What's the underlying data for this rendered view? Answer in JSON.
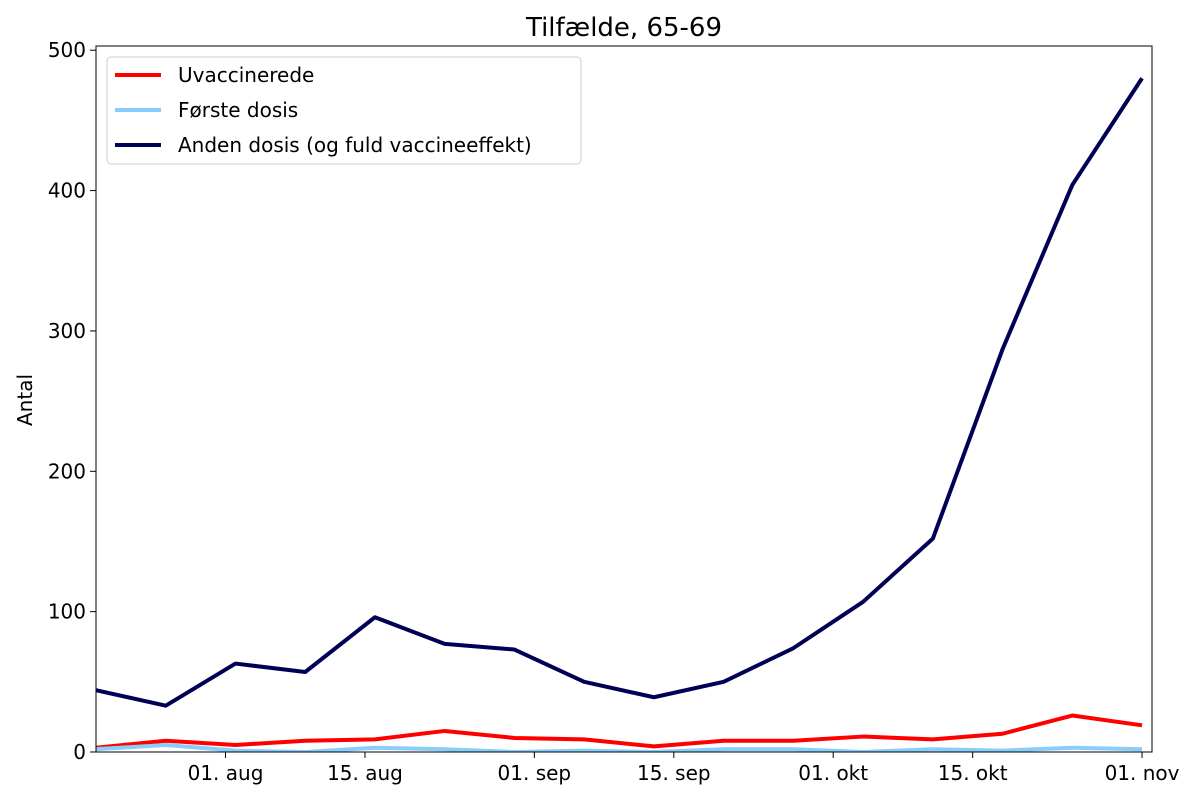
{
  "chart_data": {
    "type": "line",
    "title": "Tilfælde, 65-69",
    "xlabel": "",
    "ylabel": "Antal",
    "ylim": [
      0,
      503
    ],
    "xlim": [
      "2021-07-19",
      "2021-11-02"
    ],
    "yticks": [
      0,
      100,
      200,
      300,
      400,
      500
    ],
    "xticks": [
      {
        "date": "2021-08-01",
        "label": "01. aug"
      },
      {
        "date": "2021-08-15",
        "label": "15. aug"
      },
      {
        "date": "2021-09-01",
        "label": "01. sep"
      },
      {
        "date": "2021-09-15",
        "label": "15. sep"
      },
      {
        "date": "2021-10-01",
        "label": "01. okt"
      },
      {
        "date": "2021-10-15",
        "label": "15. okt"
      },
      {
        "date": "2021-11-01",
        "label": "01. nov"
      }
    ],
    "grid": false,
    "legend_position": "top-left",
    "x": [
      "2021-07-19",
      "2021-07-26",
      "2021-08-02",
      "2021-08-09",
      "2021-08-16",
      "2021-08-23",
      "2021-08-30",
      "2021-09-06",
      "2021-09-13",
      "2021-09-20",
      "2021-09-27",
      "2021-10-04",
      "2021-10-11",
      "2021-10-18",
      "2021-10-25",
      "2021-11-01"
    ],
    "series": [
      {
        "name": "Uvaccinerede",
        "color": "#ff0000",
        "values": [
          3,
          8,
          5,
          8,
          9,
          15,
          10,
          9,
          4,
          8,
          8,
          11,
          9,
          13,
          26,
          19
        ]
      },
      {
        "name": "Første dosis",
        "color": "#87cefa",
        "values": [
          2,
          5,
          1,
          0,
          3,
          2,
          0,
          1,
          0,
          2,
          2,
          0,
          2,
          1,
          3,
          2
        ]
      },
      {
        "name": "Anden dosis (og fuld vaccineeffekt)",
        "color": "#000055",
        "values": [
          44,
          33,
          63,
          57,
          96,
          77,
          73,
          50,
          39,
          50,
          74,
          107,
          152,
          287,
          404,
          480
        ]
      }
    ]
  }
}
